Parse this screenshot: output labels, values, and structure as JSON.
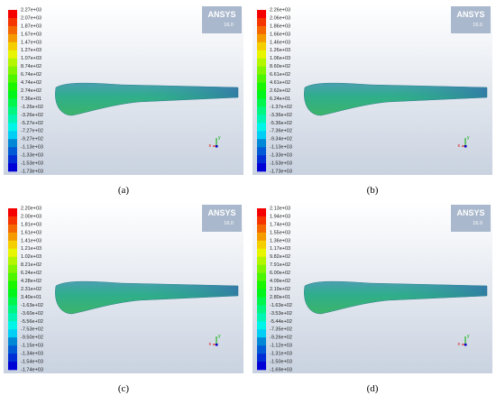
{
  "panels": [
    {
      "legend": [
        "2.27e+03",
        "2.07e+03",
        "1.87e+03",
        "1.67e+03",
        "1.47e+03",
        "1.27e+03",
        "1.07e+03",
        "8.74e+02",
        "6.74e+02",
        "4.74e+02",
        "2.74e+02",
        "7.36e+01",
        "-1.26e+02",
        "-3.26e+02",
        "-5.27e+02",
        "-7.27e+02",
        "-9.27e+02",
        "-1.13e+03",
        "-1.33e+03",
        "-1.53e+03",
        "-1.73e+03"
      ],
      "logo": "ANSYS",
      "version": "16.0",
      "triad": [
        "x",
        "y"
      ],
      "caption": "(a)"
    },
    {
      "legend": [
        "2.26e+03",
        "2.06e+03",
        "1.86e+03",
        "1.66e+03",
        "1.46e+03",
        "1.26e+03",
        "1.06e+03",
        "8.60e+02",
        "6.61e+02",
        "4.61e+02",
        "2.62e+02",
        "6.24e+01",
        "-1.37e+02",
        "-3.36e+02",
        "-5.36e+02",
        "-7.36e+02",
        "-9.34e+02",
        "-1.13e+03",
        "-1.33e+03",
        "-1.53e+03",
        "-1.73e+03"
      ],
      "logo": "ANSYS",
      "version": "16.0",
      "triad": [
        "x",
        "y"
      ],
      "caption": "(b)"
    },
    {
      "legend": [
        "2.20e+03",
        "2.00e+03",
        "1.81e+03",
        "1.61e+03",
        "1.41e+03",
        "1.21e+03",
        "1.02e+03",
        "8.21e+02",
        "6.24e+02",
        "4.28e+02",
        "2.31e+02",
        "3.40e+01",
        "-1.63e+02",
        "-3.60e+02",
        "-5.56e+02",
        "-7.53e+02",
        "-9.50e+02",
        "-1.15e+03",
        "-1.34e+03",
        "-1.54e+03",
        "-1.74e+03"
      ],
      "logo": "ANSYS",
      "version": "16.0",
      "triad": [
        "x",
        "y"
      ],
      "caption": "(c)"
    },
    {
      "legend": [
        "2.13e+03",
        "1.94e+03",
        "1.74e+03",
        "1.55e+03",
        "1.36e+03",
        "1.17e+03",
        "9.82e+02",
        "7.91e+02",
        "6.00e+02",
        "4.09e+02",
        "2.19e+02",
        "2.80e+01",
        "-1.63e+02",
        "-3.53e+02",
        "-5.44e+02",
        "-7.35e+02",
        "-9.26e+02",
        "-1.12e+03",
        "-1.31e+03",
        "-1.50e+03",
        "-1.69e+03"
      ],
      "logo": "ANSYS",
      "version": "16.0",
      "triad": [
        "x",
        "y"
      ],
      "caption": "(d)"
    }
  ]
}
